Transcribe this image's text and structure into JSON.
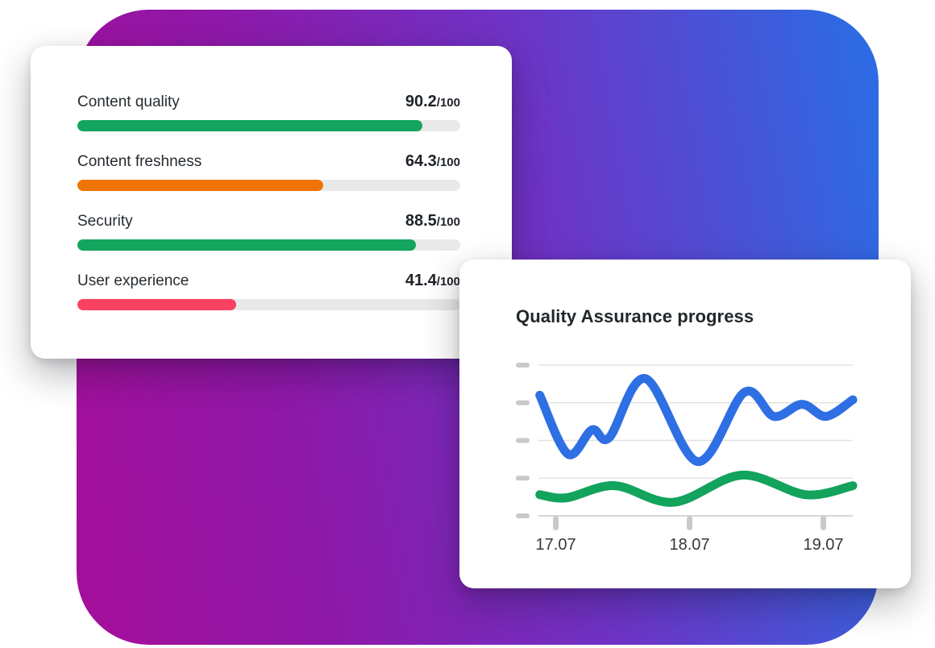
{
  "background": {
    "gradient_from": "#a30f9b",
    "gradient_mid": "#6d34c6",
    "gradient_to": "#2e6ae3"
  },
  "scorecard": {
    "metrics": [
      {
        "label": "Content quality",
        "value": "90.2",
        "max_label": "/100",
        "score": 90.2,
        "color": "#13a45e"
      },
      {
        "label": "Content freshness",
        "value": "64.3",
        "max_label": "/100",
        "score": 64.3,
        "color": "#ee7408"
      },
      {
        "label": "Security",
        "value": "88.5",
        "max_label": "/100",
        "score": 88.5,
        "color": "#13a45e"
      },
      {
        "label": "User experience",
        "value": "41.4",
        "max_label": "/100",
        "score": 41.4,
        "color": "#f94261"
      }
    ],
    "track_color": "#e9e9e9"
  },
  "chart_card": {
    "title": "Quality Assurance progress"
  },
  "chart_data": {
    "type": "line",
    "title": "Quality Assurance progress",
    "x_tick_labels": [
      "17.07",
      "18.07",
      "19.07"
    ],
    "x_tick_positions": [
      0,
      1,
      2
    ],
    "x_range": [
      -0.13,
      2.22
    ],
    "y_range": [
      0,
      100
    ],
    "y_gridlines": [
      0,
      25,
      50,
      75,
      100
    ],
    "y_tick_labels": [],
    "grid": true,
    "legend": "none",
    "axis_color": "#d7d7d7",
    "gridline_color": "#e3e3e3",
    "tick_dash_color": "#c9c9c9",
    "x_label_color": "#33383d",
    "series": [
      {
        "name": "blue-series",
        "color": "#2e6fe4",
        "points": [
          [
            -0.12,
            80
          ],
          [
            0.09,
            41
          ],
          [
            0.27,
            57
          ],
          [
            0.4,
            52
          ],
          [
            0.67,
            91
          ],
          [
            1.06,
            36
          ],
          [
            1.41,
            82
          ],
          [
            1.63,
            66
          ],
          [
            1.84,
            74
          ],
          [
            2.02,
            66
          ],
          [
            2.22,
            77
          ]
        ]
      },
      {
        "name": "green-series",
        "color": "#12a35c",
        "points": [
          [
            -0.12,
            14
          ],
          [
            0.08,
            12
          ],
          [
            0.44,
            20
          ],
          [
            0.88,
            9
          ],
          [
            1.39,
            27
          ],
          [
            1.87,
            14
          ],
          [
            2.22,
            20
          ]
        ]
      }
    ]
  }
}
